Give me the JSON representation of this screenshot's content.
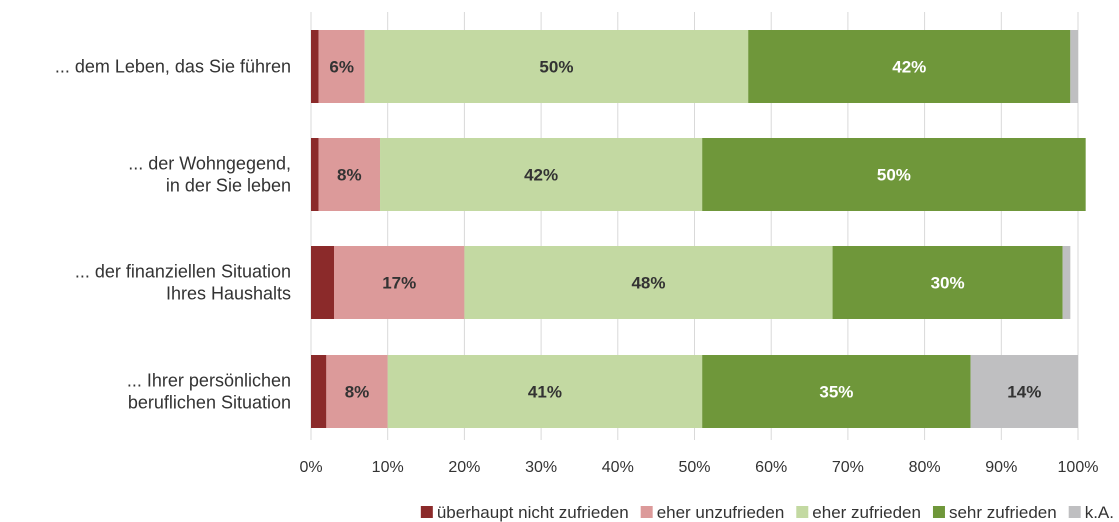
{
  "chart_data": {
    "type": "bar",
    "orientation": "horizontal",
    "stacked": true,
    "categories": [
      [
        "... dem Leben, das Sie führen"
      ],
      [
        "... der Wohngegend,",
        "in der Sie leben"
      ],
      [
        "... der finanziellen Situation",
        "Ihres Haushalts"
      ],
      [
        "... Ihrer persönlichen",
        "beruflichen Situation"
      ]
    ],
    "series": [
      {
        "name": "überhaupt nicht zufrieden",
        "color": "#8b2a2a",
        "values": [
          1,
          1,
          3,
          2
        ],
        "labels": [
          "",
          "",
          "",
          ""
        ],
        "label_color": "#333333"
      },
      {
        "name": "eher unzufrieden",
        "color": "#dc9a9a",
        "values": [
          6,
          8,
          17,
          8
        ],
        "labels": [
          "6%",
          "8%",
          "17%",
          "8%"
        ],
        "label_color": "#333333"
      },
      {
        "name": "eher zufrieden",
        "color": "#c3d9a2",
        "values": [
          50,
          42,
          48,
          41
        ],
        "labels": [
          "50%",
          "42%",
          "48%",
          "41%"
        ],
        "label_color": "#333333"
      },
      {
        "name": "sehr zufrieden",
        "color": "#6f973a",
        "values": [
          42,
          50,
          30,
          35
        ],
        "labels": [
          "42%",
          "50%",
          "30%",
          "35%"
        ],
        "label_color": "#ffffff"
      },
      {
        "name": "k.A.",
        "color": "#bfbfc1",
        "values": [
          1,
          0,
          1,
          14
        ],
        "labels": [
          "",
          "",
          "",
          "14%"
        ],
        "label_color": "#333333"
      }
    ],
    "xlim": [
      0,
      100
    ],
    "x_ticks": [
      "0%",
      "10%",
      "20%",
      "30%",
      "40%",
      "50%",
      "60%",
      "70%",
      "80%",
      "90%",
      "100%"
    ],
    "grid": "vertical",
    "grid_color": "#d9d9d9",
    "legend": "bottom",
    "title": "",
    "xlabel": "",
    "ylabel": ""
  }
}
